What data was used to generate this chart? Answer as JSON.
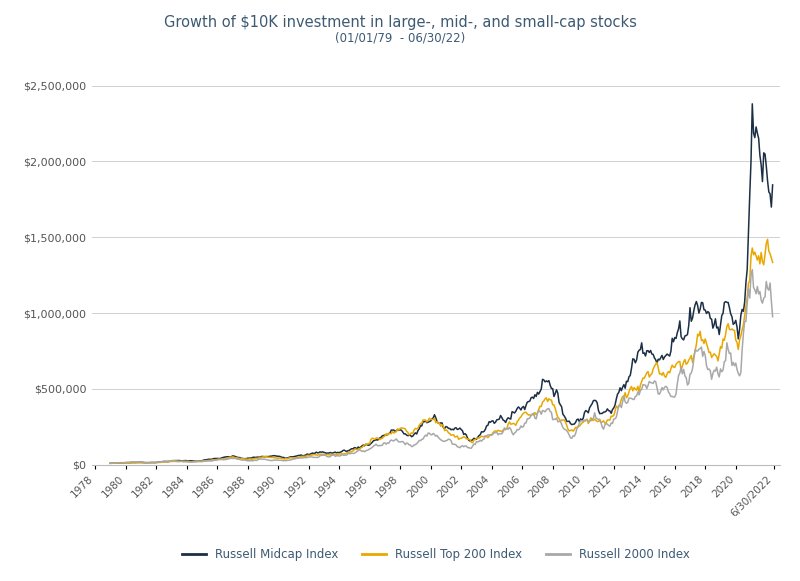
{
  "title": "Growth of $10K investment in large-, mid-, and small-cap stocks",
  "subtitle": "(01/01/79  - 06/30/22)",
  "title_color": "#3d5a73",
  "subtitle_color": "#3d5a73",
  "background_color": "#ffffff",
  "plot_background": "#ffffff",
  "grid_color": "#d0d0d0",
  "line_colors": {
    "midcap": "#1c2f45",
    "top200": "#e8a800",
    "small2000": "#a8a8a8"
  },
  "legend_labels": [
    "Russell Midcap Index",
    "Russell Top 200 Index",
    "Russell 2000 Index"
  ],
  "ylim": [
    0,
    2700000
  ],
  "yticks": [
    0,
    500000,
    1000000,
    1500000,
    2000000,
    2500000
  ],
  "start_year": 1977.8,
  "end_year": 2022.9
}
